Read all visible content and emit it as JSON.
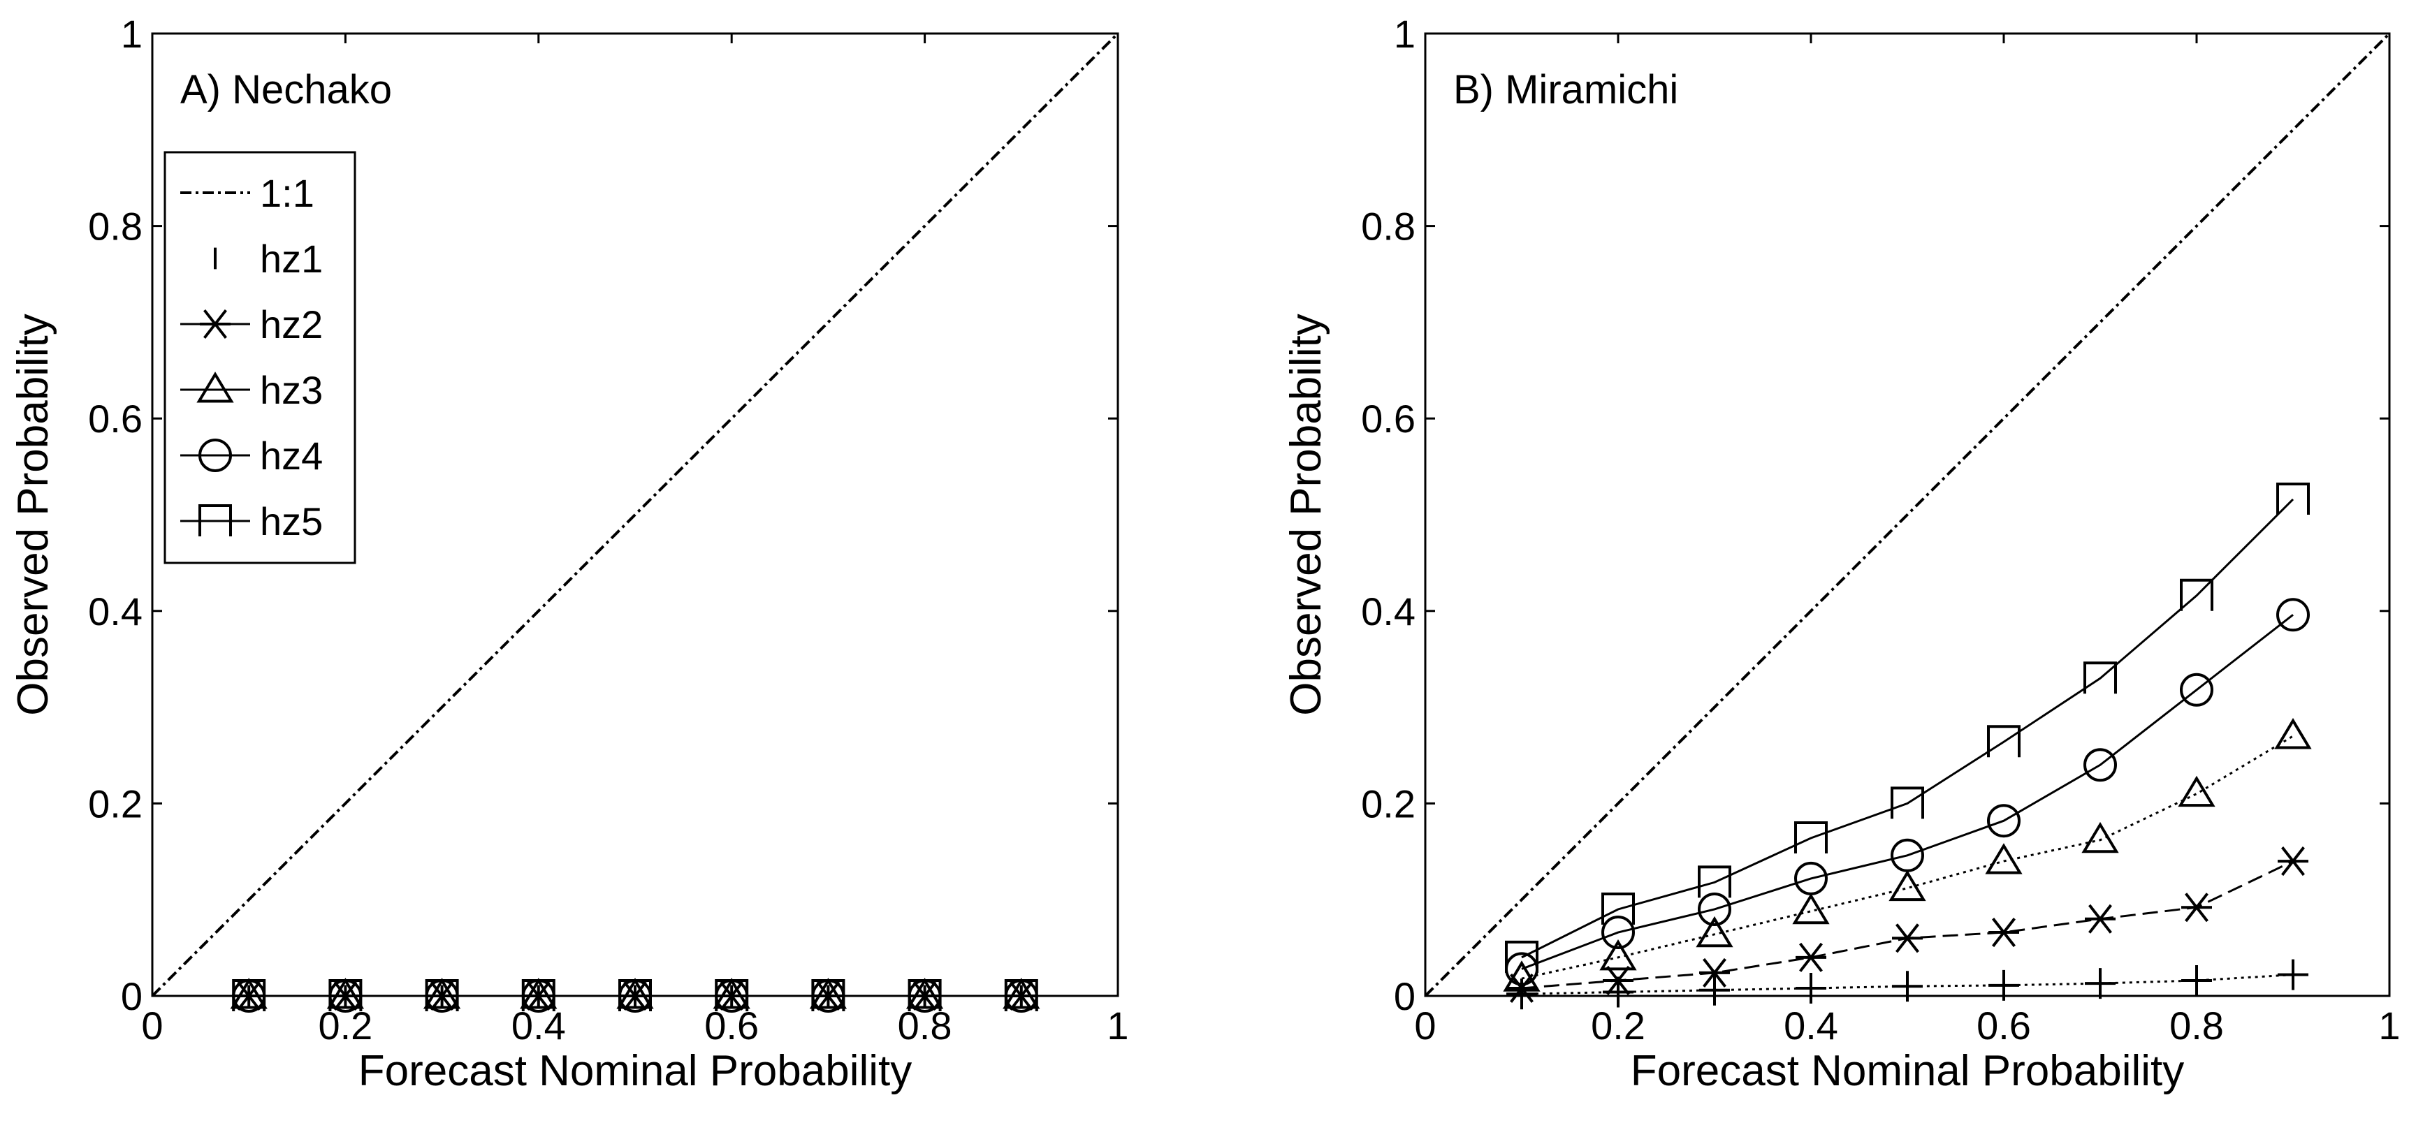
{
  "chart_data": [
    {
      "type": "line",
      "panel_label": "A) Nechako",
      "xlabel": "Forecast Nominal Probability",
      "ylabel": "Observed Probability",
      "xlim": [
        0,
        1
      ],
      "ylim": [
        0,
        1
      ],
      "x_ticks": [
        "0",
        "0.2",
        "0.4",
        "0.6",
        "0.8",
        "1"
      ],
      "y_ticks": [
        "0",
        "0.2",
        "0.4",
        "0.6",
        "0.8",
        "1"
      ],
      "legend_position": "top-left",
      "legend": [
        "1:1",
        "hz1",
        "hz2",
        "hz3",
        "hz4",
        "hz5"
      ],
      "x": [
        0.1,
        0.2,
        0.3,
        0.4,
        0.5,
        0.6,
        0.7,
        0.8,
        0.9
      ],
      "reference": {
        "name": "1:1",
        "x": [
          0,
          1
        ],
        "y": [
          0,
          1
        ]
      },
      "series": [
        {
          "name": "hz1",
          "marker": "vbar",
          "dash": "",
          "values": [
            0,
            0,
            0,
            0,
            0,
            0,
            0,
            0,
            0
          ]
        },
        {
          "name": "hz2",
          "marker": "asterisk",
          "dash": "",
          "values": [
            0,
            0,
            0,
            0,
            0,
            0,
            0,
            0,
            0
          ]
        },
        {
          "name": "hz3",
          "marker": "triangle",
          "dash": "",
          "values": [
            0,
            0,
            0,
            0,
            0,
            0,
            0,
            0,
            0
          ]
        },
        {
          "name": "hz4",
          "marker": "circle",
          "dash": "",
          "values": [
            0,
            0,
            0,
            0,
            0,
            0,
            0,
            0,
            0
          ]
        },
        {
          "name": "hz5",
          "marker": "square",
          "dash": "",
          "values": [
            0,
            0,
            0,
            0,
            0,
            0,
            0,
            0,
            0
          ]
        }
      ]
    },
    {
      "type": "line",
      "panel_label": "B) Miramichi",
      "xlabel": "Forecast Nominal Probability",
      "ylabel": "Observed Probability",
      "xlim": [
        0,
        1
      ],
      "ylim": [
        0,
        1
      ],
      "x_ticks": [
        "0",
        "0.2",
        "0.4",
        "0.6",
        "0.8",
        "1"
      ],
      "y_ticks": [
        "0",
        "0.2",
        "0.4",
        "0.6",
        "0.8",
        "1"
      ],
      "x": [
        0.1,
        0.2,
        0.3,
        0.4,
        0.5,
        0.6,
        0.7,
        0.8,
        0.9
      ],
      "reference": {
        "name": "1:1",
        "x": [
          0,
          1
        ],
        "y": [
          0,
          1
        ]
      },
      "series": [
        {
          "name": "hz1",
          "marker": "plus",
          "dash": "dotted",
          "values": [
            0.002,
            0.004,
            0.006,
            0.008,
            0.01,
            0.011,
            0.013,
            0.016,
            0.022
          ]
        },
        {
          "name": "hz2",
          "marker": "asterisk",
          "dash": "dashed",
          "values": [
            0.008,
            0.016,
            0.024,
            0.04,
            0.06,
            0.066,
            0.08,
            0.092,
            0.14
          ]
        },
        {
          "name": "hz3",
          "marker": "triangle",
          "dash": "dotted",
          "values": [
            0.018,
            0.04,
            0.064,
            0.088,
            0.112,
            0.14,
            0.162,
            0.21,
            0.27
          ]
        },
        {
          "name": "hz4",
          "marker": "circle",
          "dash": "",
          "values": [
            0.028,
            0.066,
            0.09,
            0.122,
            0.146,
            0.182,
            0.24,
            0.318,
            0.396
          ]
        },
        {
          "name": "hz5",
          "marker": "square",
          "dash": "",
          "values": [
            0.04,
            0.09,
            0.118,
            0.164,
            0.2,
            0.264,
            0.33,
            0.416,
            0.516
          ]
        }
      ]
    }
  ]
}
